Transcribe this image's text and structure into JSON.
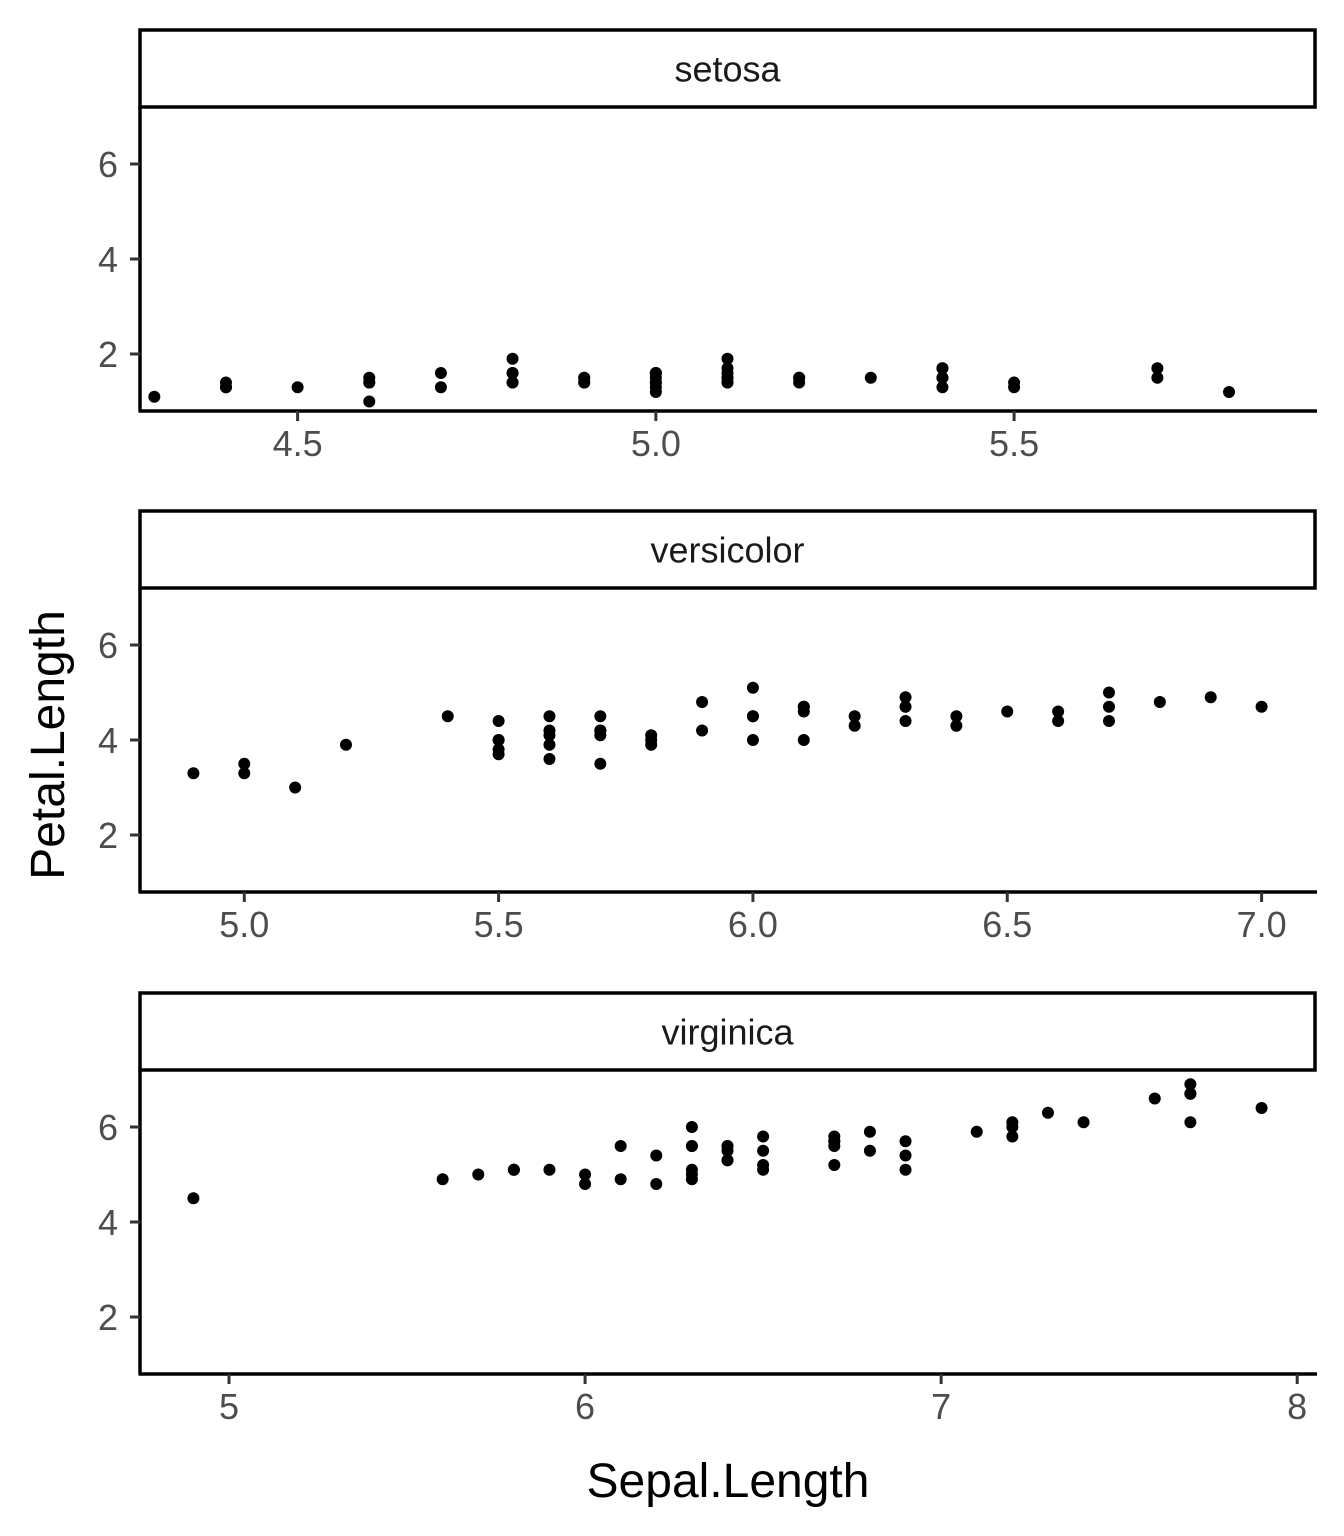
{
  "chart_data": {
    "type": "scatter",
    "xlabel": "Sepal.Length",
    "ylabel": "Petal.Length",
    "color": "#000000",
    "facets": [
      {
        "strip": "setosa",
        "xlim": [
          4.28,
          5.92
        ],
        "ylim": [
          0.8,
          7.2
        ],
        "xticks": [
          4.5,
          5.0,
          5.5
        ],
        "xtick_labels": [
          "4.5",
          "5.0",
          "5.5"
        ],
        "yticks": [
          2,
          4,
          6
        ],
        "ytick_labels": [
          "2",
          "4",
          "6"
        ],
        "x": [
          5.1,
          4.9,
          4.7,
          4.6,
          5.0,
          5.4,
          4.6,
          5.0,
          4.4,
          4.9,
          5.4,
          4.8,
          4.8,
          4.3,
          5.8,
          5.7,
          5.4,
          5.1,
          5.7,
          5.1,
          5.4,
          5.1,
          4.6,
          5.1,
          4.8,
          5.0,
          5.0,
          5.2,
          5.2,
          4.7,
          4.8,
          5.4,
          5.2,
          5.5,
          4.9,
          5.0,
          5.5,
          4.9,
          4.4,
          5.1,
          5.0,
          4.5,
          4.4,
          5.0,
          5.1,
          4.8,
          5.1,
          4.6,
          5.3,
          5.0
        ],
        "y": [
          1.4,
          1.4,
          1.3,
          1.5,
          1.4,
          1.7,
          1.4,
          1.5,
          1.4,
          1.5,
          1.5,
          1.6,
          1.4,
          1.1,
          1.2,
          1.5,
          1.3,
          1.4,
          1.7,
          1.5,
          1.7,
          1.5,
          1.0,
          1.7,
          1.9,
          1.6,
          1.6,
          1.5,
          1.4,
          1.6,
          1.6,
          1.5,
          1.5,
          1.4,
          1.5,
          1.2,
          1.3,
          1.4,
          1.3,
          1.5,
          1.3,
          1.3,
          1.3,
          1.6,
          1.9,
          1.4,
          1.6,
          1.4,
          1.5,
          1.4
        ]
      },
      {
        "strip": "versicolor",
        "xlim": [
          4.795,
          7.105
        ],
        "ylim": [
          0.8,
          7.2
        ],
        "xticks": [
          5.0,
          5.5,
          6.0,
          6.5,
          7.0
        ],
        "xtick_labels": [
          "5.0",
          "5.5",
          "6.0",
          "6.5",
          "7.0"
        ],
        "yticks": [
          2,
          4,
          6
        ],
        "ytick_labels": [
          "2",
          "4",
          "6"
        ],
        "x": [
          7.0,
          6.4,
          6.9,
          5.5,
          6.5,
          5.7,
          6.3,
          4.9,
          6.6,
          5.2,
          5.0,
          5.9,
          6.0,
          6.1,
          5.6,
          6.7,
          5.6,
          5.8,
          6.2,
          5.6,
          5.9,
          6.1,
          6.3,
          6.1,
          6.4,
          6.6,
          6.8,
          6.7,
          6.0,
          5.7,
          5.5,
          5.5,
          5.8,
          6.0,
          5.4,
          6.0,
          6.7,
          6.3,
          5.6,
          5.5,
          5.5,
          6.1,
          5.8,
          5.0,
          5.6,
          5.7,
          5.7,
          6.2,
          5.1,
          5.7
        ],
        "y": [
          4.7,
          4.5,
          4.9,
          4.0,
          4.6,
          4.5,
          4.7,
          3.3,
          4.6,
          3.9,
          3.5,
          4.2,
          4.0,
          4.7,
          3.6,
          4.4,
          4.5,
          4.1,
          4.5,
          3.9,
          4.8,
          4.0,
          4.9,
          4.7,
          4.3,
          4.4,
          4.8,
          5.0,
          4.5,
          3.5,
          3.8,
          3.7,
          3.9,
          5.1,
          4.5,
          4.5,
          4.7,
          4.4,
          4.1,
          4.0,
          4.4,
          4.6,
          4.0,
          3.3,
          4.2,
          4.2,
          4.2,
          4.3,
          3.0,
          4.1
        ]
      },
      {
        "strip": "virginica",
        "xlim": [
          4.75,
          8.05
        ],
        "ylim": [
          0.8,
          7.2
        ],
        "xticks": [
          5,
          6,
          7,
          8
        ],
        "xtick_labels": [
          "5",
          "6",
          "7",
          "8"
        ],
        "yticks": [
          2,
          4,
          6
        ],
        "ytick_labels": [
          "2",
          "4",
          "6"
        ],
        "x": [
          6.3,
          5.8,
          7.1,
          6.3,
          6.5,
          7.6,
          4.9,
          7.3,
          6.7,
          7.2,
          6.5,
          6.4,
          6.8,
          5.7,
          5.8,
          6.4,
          6.5,
          7.7,
          7.7,
          6.0,
          6.9,
          5.6,
          7.7,
          6.3,
          6.7,
          7.2,
          6.2,
          6.1,
          6.4,
          7.2,
          7.4,
          7.9,
          6.4,
          6.3,
          6.1,
          7.7,
          6.3,
          6.4,
          6.0,
          6.9,
          6.7,
          6.9,
          5.8,
          6.8,
          6.7,
          6.7,
          6.3,
          6.5,
          6.2,
          5.9
        ],
        "y": [
          6.0,
          5.1,
          5.9,
          5.6,
          5.8,
          6.6,
          4.5,
          6.3,
          5.8,
          6.1,
          5.1,
          5.3,
          5.5,
          5.0,
          5.1,
          5.3,
          5.5,
          6.7,
          6.9,
          5.0,
          5.7,
          4.9,
          6.7,
          4.9,
          5.7,
          6.0,
          4.8,
          4.9,
          5.6,
          5.8,
          6.1,
          6.4,
          5.6,
          5.1,
          5.6,
          6.1,
          5.6,
          5.5,
          4.8,
          5.4,
          5.6,
          5.1,
          5.1,
          5.9,
          5.7,
          5.2,
          5.0,
          5.2,
          5.4,
          5.1
        ]
      }
    ]
  }
}
